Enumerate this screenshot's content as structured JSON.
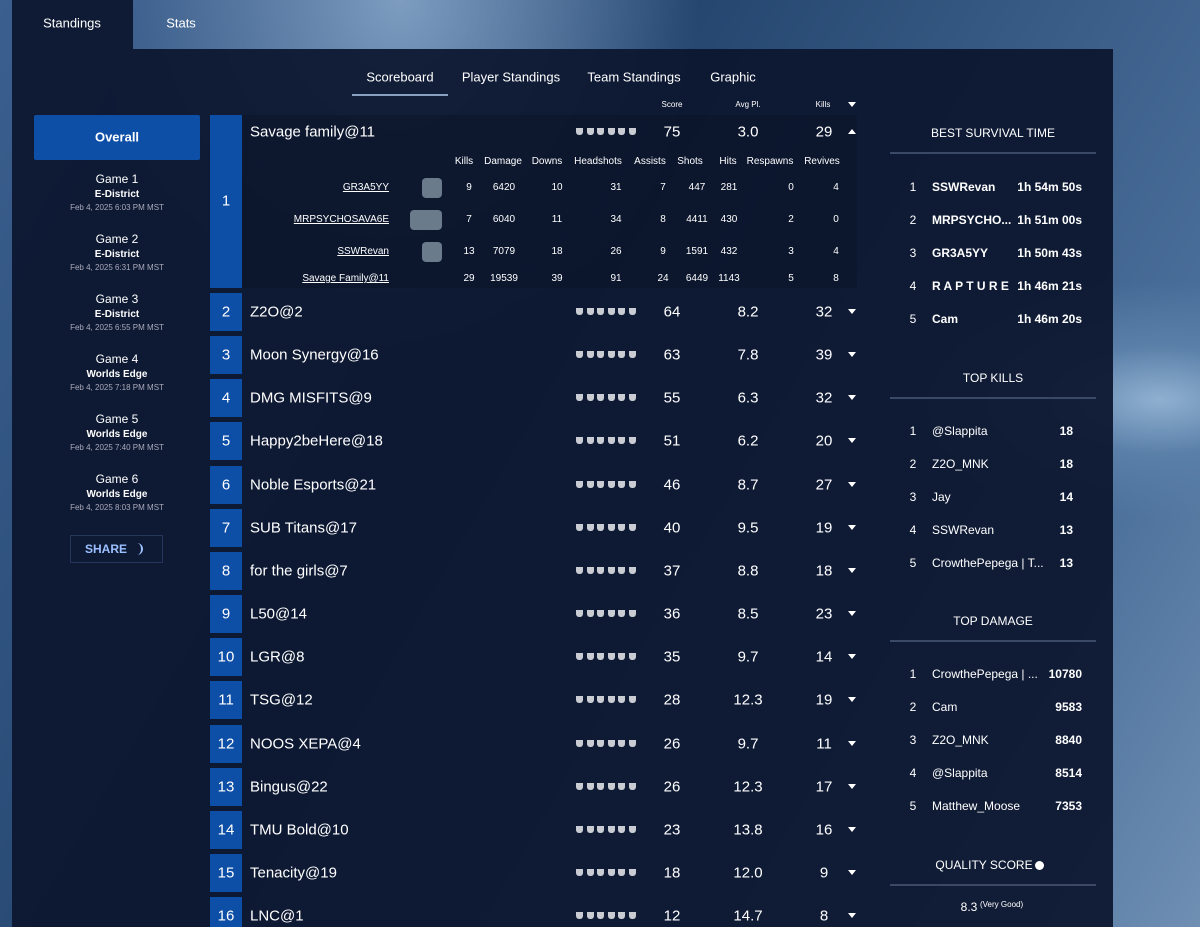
{
  "tabs": [
    "Standings",
    "Stats"
  ],
  "subtabs": [
    "Scoreboard",
    "Player Standings",
    "Team Standings",
    "Graphic"
  ],
  "sidebar": {
    "overall": "Overall",
    "games": [
      {
        "title": "Game 1",
        "map": "E-District",
        "date": "Feb 4, 2025 6:03 PM MST"
      },
      {
        "title": "Game 2",
        "map": "E-District",
        "date": "Feb 4, 2025 6:31 PM MST"
      },
      {
        "title": "Game 3",
        "map": "E-District",
        "date": "Feb 4, 2025 6:55 PM MST"
      },
      {
        "title": "Game 4",
        "map": "Worlds Edge",
        "date": "Feb 4, 2025 7:18 PM MST"
      },
      {
        "title": "Game 5",
        "map": "Worlds Edge",
        "date": "Feb 4, 2025 7:40 PM MST"
      },
      {
        "title": "Game 6",
        "map": "Worlds Edge",
        "date": "Feb 4, 2025 8:03 PM MST"
      }
    ],
    "share": "SHARE"
  },
  "table": {
    "headers": [
      "Score",
      "Avg Pl.",
      "Kills"
    ],
    "detail_headers": [
      "Kills",
      "Damage",
      "Downs",
      "Headshots",
      "Assists",
      "Shots",
      "Hits",
      "Respawns",
      "Revives"
    ],
    "players": [
      {
        "name": "GR3A5YY",
        "stats": [
          9,
          6420,
          10,
          31,
          7,
          447,
          281,
          0,
          4
        ]
      },
      {
        "name": "MRPSYCHOSAVA6E",
        "stats": [
          7,
          6040,
          11,
          34,
          8,
          4411,
          430,
          2,
          0
        ]
      },
      {
        "name": "SSWRevan",
        "stats": [
          13,
          7079,
          18,
          26,
          9,
          1591,
          432,
          3,
          4
        ]
      },
      {
        "name": "Savage Family@11",
        "stats": [
          29,
          19539,
          39,
          91,
          24,
          6449,
          1143,
          5,
          8
        ]
      }
    ],
    "rows": [
      [
        1,
        "Savage family@11",
        75,
        "3.0",
        29
      ],
      [
        2,
        "Z2O@2",
        64,
        "8.2",
        32
      ],
      [
        3,
        "Moon Synergy@16",
        63,
        "7.8",
        39
      ],
      [
        4,
        "DMG MISFITS@9",
        55,
        "6.3",
        32
      ],
      [
        5,
        "Happy2beHere@18",
        51,
        "6.2",
        20
      ],
      [
        6,
        "Noble Esports@21",
        46,
        "8.7",
        27
      ],
      [
        7,
        "SUB Titans@17",
        40,
        "9.5",
        19
      ],
      [
        8,
        "for the girls@7",
        37,
        "8.8",
        18
      ],
      [
        9,
        "L50@14",
        36,
        "8.5",
        23
      ],
      [
        10,
        "LGR@8",
        35,
        "9.7",
        14
      ],
      [
        11,
        "TSG@12",
        28,
        "12.3",
        19
      ],
      [
        12,
        "NOOS XEPA@4",
        26,
        "9.7",
        11
      ],
      [
        13,
        "Bingus@22",
        26,
        "12.3",
        17
      ],
      [
        14,
        "TMU Bold@10",
        23,
        "13.8",
        16
      ],
      [
        15,
        "Tenacity@19",
        18,
        "12.0",
        9
      ],
      [
        16,
        "LNC@1",
        12,
        "14.7",
        8
      ]
    ]
  },
  "panels": [
    {
      "title": "BEST SURVIVAL TIME",
      "rows": [
        [
          1,
          "SSWRevan",
          "1h 54m 50s"
        ],
        [
          2,
          "MRPSYCHO...",
          "1h 51m 00s"
        ],
        [
          3,
          "GR3A5YY",
          "1h 50m 43s"
        ],
        [
          4,
          "R A P T U R E",
          "1h 46m 21s"
        ],
        [
          5,
          "Cam",
          "1h 46m 20s"
        ]
      ]
    },
    {
      "title": "TOP KILLS",
      "rows": [
        [
          1,
          "@Slappita",
          18
        ],
        [
          2,
          "Z2O_MNK",
          18
        ],
        [
          3,
          "Jay",
          14
        ],
        [
          4,
          "SSWRevan",
          13
        ],
        [
          5,
          "CrowthePepega | T...",
          13
        ]
      ]
    },
    {
      "title": "TOP DAMAGE",
      "rows": [
        [
          1,
          "CrowthePepega | ...",
          10780
        ],
        [
          2,
          "Cam",
          9583
        ],
        [
          3,
          "Z2O_MNK",
          8840
        ],
        [
          4,
          "@Slappita",
          8514
        ],
        [
          5,
          "Matthew_Moose",
          7353
        ]
      ]
    }
  ],
  "quality": {
    "title": "QUALITY SCORE",
    "value": 8.3,
    "note": "(Very Good)"
  }
}
